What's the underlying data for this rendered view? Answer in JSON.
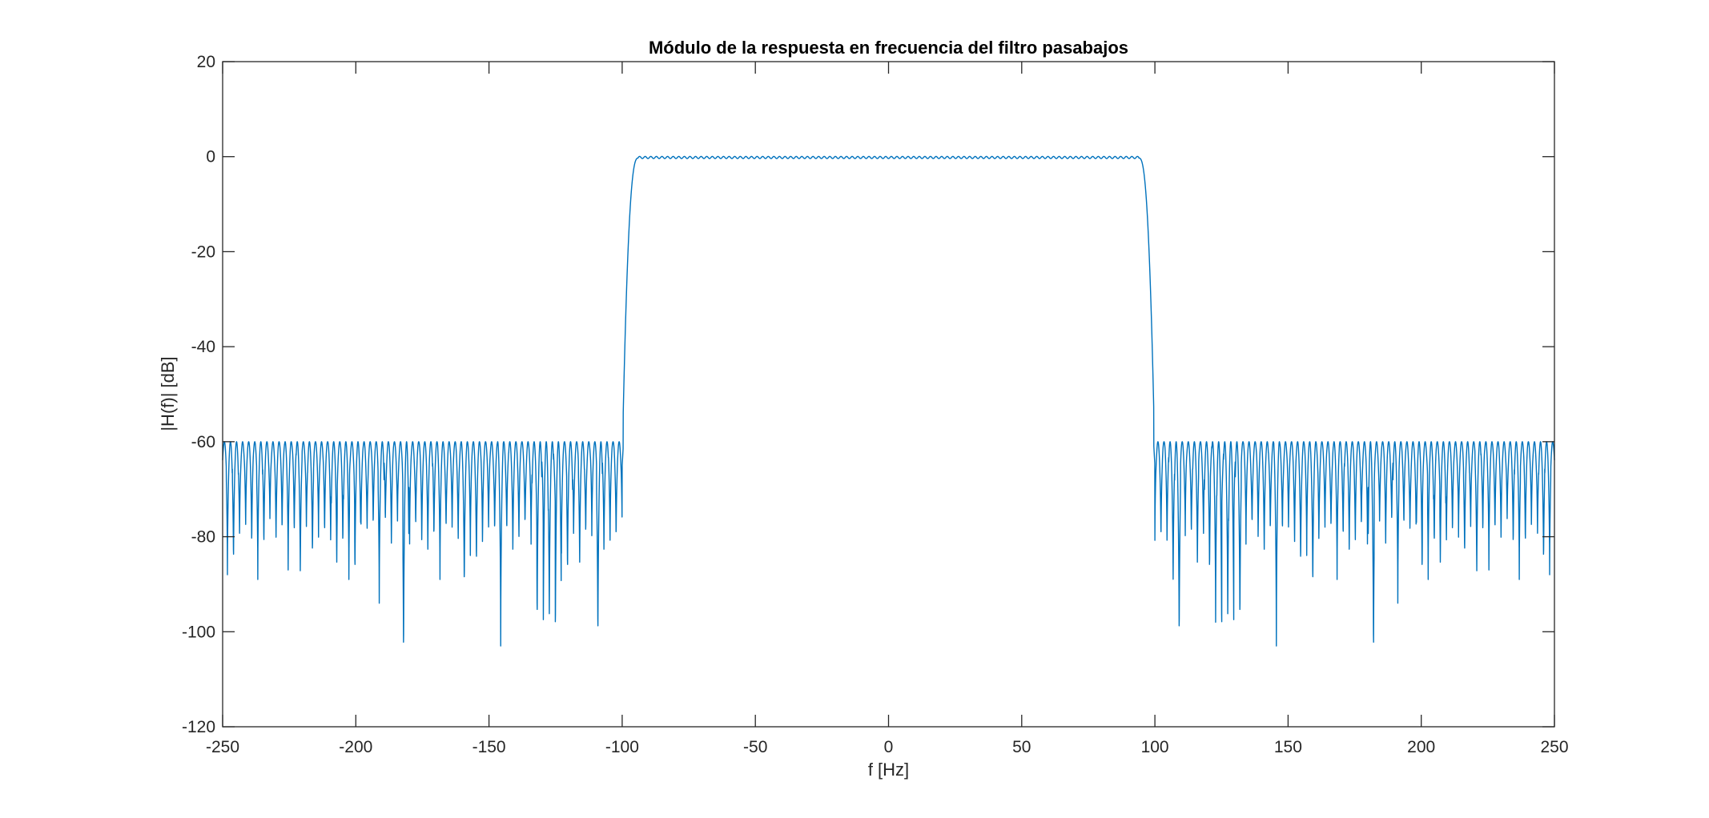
{
  "chart_data": {
    "type": "line",
    "title": "Módulo de la respuesta en frecuencia del filtro pasabajos",
    "xlabel": "f [Hz]",
    "ylabel": "|H(f)| [dB]",
    "xlim": [
      -250,
      250
    ],
    "ylim": [
      -120,
      20
    ],
    "xticks": [
      -250,
      -200,
      -150,
      -100,
      -50,
      0,
      50,
      100,
      150,
      200,
      250
    ],
    "xtick_labels": [
      "-250",
      "-200",
      "-150",
      "-100",
      "-50",
      "0",
      "50",
      "100",
      "150",
      "200",
      "250"
    ],
    "yticks": [
      -120,
      -100,
      -80,
      -60,
      -40,
      -20,
      0,
      20
    ],
    "ytick_labels": [
      "-120",
      "-100",
      "-80",
      "-60",
      "-40",
      "-20",
      "0",
      "20"
    ],
    "grid": false,
    "line_color": "#0072BD",
    "series": [
      {
        "x": [
          -250,
          -230,
          -210,
          -190,
          -170,
          -150,
          -130,
          -110,
          -100,
          -98,
          -96,
          -95,
          -94,
          0,
          94,
          95,
          96,
          98,
          100,
          110,
          130,
          150,
          170,
          190,
          210,
          230,
          250
        ],
        "y": [
          -60,
          -60,
          -60,
          -60,
          -60,
          -60,
          -60,
          -60,
          -61,
          -25,
          -3,
          -0.5,
          0,
          0,
          0,
          -0.5,
          -3,
          -25,
          -61,
          -60,
          -60,
          -60,
          -60,
          -60,
          -60,
          -60,
          -60
        ]
      }
    ],
    "stopband_nulls": [
      {
        "x": -247.5,
        "y": -88
      },
      {
        "x": -245.2,
        "y": -87.5
      },
      {
        "x": -236.1,
        "y": -89
      },
      {
        "x": -225.6,
        "y": -87
      },
      {
        "x": -221.3,
        "y": -90
      },
      {
        "x": -217,
        "y": -86
      },
      {
        "x": -208.1,
        "y": -88
      },
      {
        "x": -203.5,
        "y": -89
      },
      {
        "x": -199.3,
        "y": -90
      },
      {
        "x": -190.5,
        "y": -94
      },
      {
        "x": -181.2,
        "y": -109
      },
      {
        "x": -172.3,
        "y": -85
      },
      {
        "x": -168.1,
        "y": -89
      },
      {
        "x": -159.2,
        "y": -93
      },
      {
        "x": -154.6,
        "y": -88
      },
      {
        "x": -145.8,
        "y": -103
      },
      {
        "x": -141.5,
        "y": -85
      },
      {
        "x": -132.7,
        "y": -89
      },
      {
        "x": -131.3,
        "y": -101
      },
      {
        "x": -128.5,
        "y": -107
      },
      {
        "x": -126.9,
        "y": -100
      },
      {
        "x": -124,
        "y": -104
      },
      {
        "x": -119.7,
        "y": -90
      },
      {
        "x": -115.3,
        "y": -88
      },
      {
        "x": -108.5,
        "y": -105
      },
      {
        "x": -106.3,
        "y": -85
      },
      {
        "x": -101.7,
        "y": -82
      },
      {
        "x": 101.7,
        "y": -82
      },
      {
        "x": 106.3,
        "y": -92
      },
      {
        "x": 108.5,
        "y": -105
      },
      {
        "x": 115.3,
        "y": -88
      },
      {
        "x": 119.7,
        "y": -90
      },
      {
        "x": 122.5,
        "y": -98
      },
      {
        "x": 124,
        "y": -104
      },
      {
        "x": 126.9,
        "y": -100
      },
      {
        "x": 128.5,
        "y": -107
      },
      {
        "x": 131.3,
        "y": -101
      },
      {
        "x": 141.5,
        "y": -85
      },
      {
        "x": 145.8,
        "y": -103
      },
      {
        "x": 154.6,
        "y": -88
      },
      {
        "x": 159.2,
        "y": -93
      },
      {
        "x": 168.1,
        "y": -89
      },
      {
        "x": 172.3,
        "y": -85
      },
      {
        "x": 181.2,
        "y": -109
      },
      {
        "x": 190.5,
        "y": -94
      },
      {
        "x": 199.3,
        "y": -90
      },
      {
        "x": 203.5,
        "y": -89
      },
      {
        "x": 208.1,
        "y": -88
      },
      {
        "x": 217,
        "y": -86
      },
      {
        "x": 221.3,
        "y": -90
      },
      {
        "x": 225.6,
        "y": -87
      },
      {
        "x": 236.1,
        "y": -89
      },
      {
        "x": 245.2,
        "y": -87.5
      },
      {
        "x": 247.5,
        "y": -88
      }
    ]
  }
}
